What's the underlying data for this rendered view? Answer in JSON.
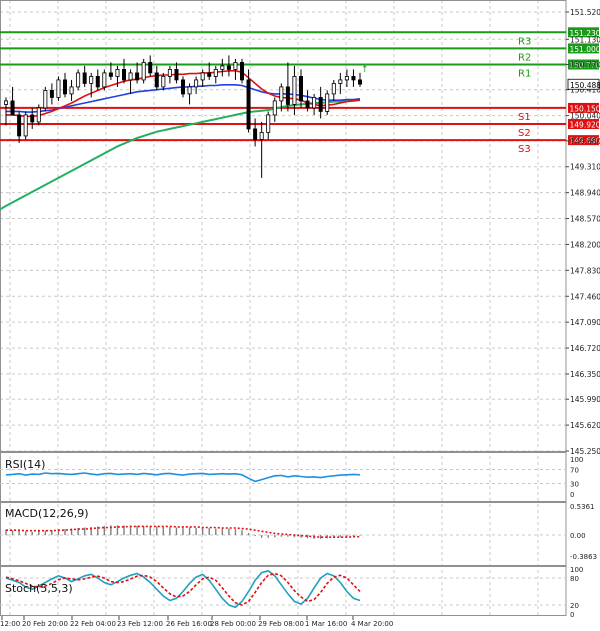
{
  "chart_data": {
    "type": "candlestick",
    "main": {
      "y_ticks": [
        "151.520",
        "151.130",
        "150.770",
        "150.410",
        "150.040",
        "149.680",
        "149.310",
        "148.940",
        "148.570",
        "148.200",
        "147.830",
        "147.460",
        "147.090",
        "146.720",
        "146.350",
        "145.990",
        "145.620",
        "145.250"
      ],
      "ylim": [
        145.25,
        151.7
      ],
      "last_price": "150.488",
      "current_price_label": "↑",
      "levels": [
        {
          "name": "R3",
          "value": 151.23,
          "label": "151.230",
          "color": "#1a9a1a"
        },
        {
          "name": "R2",
          "value": 151.0,
          "label": "151.000",
          "color": "#1a9a1a"
        },
        {
          "name": "R1",
          "value": 150.77,
          "label": "150.770",
          "color": "#1a9a1a"
        },
        {
          "name": "S1",
          "value": 150.15,
          "label": "150.150",
          "color": "#e01010"
        },
        {
          "name": "S2",
          "value": 149.92,
          "label": "149.920",
          "color": "#e01010"
        },
        {
          "name": "S3",
          "value": 149.69,
          "label": "149.690",
          "color": "#e01010"
        }
      ],
      "candles": [
        [
          150.2,
          150.3,
          149.9,
          150.25
        ],
        [
          150.25,
          150.45,
          150.1,
          150.05
        ],
        [
          150.05,
          150.1,
          149.65,
          149.75
        ],
        [
          149.75,
          150.1,
          149.7,
          150.05
        ],
        [
          150.05,
          150.15,
          149.85,
          149.95
        ],
        [
          149.95,
          150.2,
          149.9,
          150.15
        ],
        [
          150.15,
          150.45,
          150.1,
          150.4
        ],
        [
          150.4,
          150.5,
          150.2,
          150.3
        ],
        [
          150.3,
          150.6,
          150.25,
          150.55
        ],
        [
          150.55,
          150.65,
          150.3,
          150.35
        ],
        [
          150.35,
          150.55,
          150.25,
          150.45
        ],
        [
          150.45,
          150.7,
          150.4,
          150.65
        ],
        [
          150.65,
          150.75,
          150.45,
          150.5
        ],
        [
          150.5,
          150.65,
          150.3,
          150.6
        ],
        [
          150.6,
          150.7,
          150.4,
          150.45
        ],
        [
          150.45,
          150.7,
          150.4,
          150.65
        ],
        [
          150.65,
          150.8,
          150.55,
          150.6
        ],
        [
          150.6,
          150.75,
          150.45,
          150.7
        ],
        [
          150.7,
          150.85,
          150.5,
          150.55
        ],
        [
          150.55,
          150.7,
          150.35,
          150.65
        ],
        [
          150.65,
          150.8,
          150.5,
          150.55
        ],
        [
          150.55,
          150.85,
          150.5,
          150.8
        ],
        [
          150.8,
          150.9,
          150.6,
          150.65
        ],
        [
          150.65,
          150.75,
          150.4,
          150.45
        ],
        [
          150.45,
          150.65,
          150.4,
          150.6
        ],
        [
          150.6,
          150.75,
          150.5,
          150.7
        ],
        [
          150.7,
          150.8,
          150.5,
          150.55
        ],
        [
          150.55,
          150.6,
          150.3,
          150.35
        ],
        [
          150.35,
          150.5,
          150.2,
          150.45
        ],
        [
          150.45,
          150.6,
          150.35,
          150.55
        ],
        [
          150.55,
          150.7,
          150.45,
          150.65
        ],
        [
          150.65,
          150.8,
          150.55,
          150.6
        ],
        [
          150.6,
          150.75,
          150.5,
          150.7
        ],
        [
          150.7,
          150.85,
          150.6,
          150.75
        ],
        [
          150.75,
          150.9,
          150.6,
          150.7
        ],
        [
          150.7,
          150.85,
          150.55,
          150.8
        ],
        [
          150.8,
          150.85,
          150.5,
          150.55
        ],
        [
          150.55,
          150.7,
          149.8,
          149.85
        ],
        [
          149.85,
          150.0,
          149.6,
          149.7
        ],
        [
          149.7,
          149.95,
          149.15,
          149.8
        ],
        [
          149.8,
          150.1,
          149.7,
          150.05
        ],
        [
          150.05,
          150.3,
          149.95,
          150.25
        ],
        [
          150.25,
          150.5,
          150.1,
          150.45
        ],
        [
          150.45,
          150.8,
          150.1,
          150.2
        ],
        [
          150.2,
          150.75,
          150.05,
          150.6
        ],
        [
          150.6,
          150.7,
          150.15,
          150.25
        ],
        [
          150.25,
          150.4,
          150.1,
          150.15
        ],
        [
          150.15,
          150.35,
          150.05,
          150.3
        ],
        [
          150.3,
          150.45,
          150.0,
          150.1
        ],
        [
          150.1,
          150.4,
          150.05,
          150.35
        ],
        [
          150.35,
          150.55,
          150.25,
          150.5
        ],
        [
          150.5,
          150.65,
          150.35,
          150.55
        ],
        [
          150.55,
          150.7,
          150.45,
          150.6
        ],
        [
          150.6,
          150.7,
          150.45,
          150.55
        ],
        [
          150.55,
          150.65,
          150.45,
          150.49
        ]
      ],
      "ma_red": [
        150.05,
        150.05,
        150.04,
        150.03,
        150.03,
        150.04,
        150.07,
        150.1,
        150.14,
        150.18,
        150.22,
        150.27,
        150.32,
        150.36,
        150.4,
        150.44,
        150.47,
        150.5,
        150.53,
        150.55,
        150.56,
        150.58,
        150.6,
        150.61,
        150.62,
        150.62,
        150.63,
        150.63,
        150.64,
        150.64,
        150.65,
        150.65,
        150.66,
        150.67,
        150.68,
        150.68,
        150.66,
        150.58,
        150.5,
        150.42,
        150.36,
        150.32,
        150.3,
        150.29,
        150.28,
        150.26,
        150.22,
        150.2,
        150.18,
        150.19,
        150.2,
        150.22,
        150.24,
        150.25,
        150.26
      ],
      "ma_blue": [
        150.1,
        150.1,
        150.1,
        150.09,
        150.09,
        150.1,
        150.11,
        150.12,
        150.14,
        150.16,
        150.18,
        150.2,
        150.22,
        150.24,
        150.26,
        150.28,
        150.3,
        150.32,
        150.34,
        150.36,
        150.38,
        150.39,
        150.4,
        150.41,
        150.42,
        150.43,
        150.44,
        150.45,
        150.45,
        150.46,
        150.46,
        150.47,
        150.47,
        150.48,
        150.48,
        150.48,
        150.47,
        150.44,
        150.41,
        150.38,
        150.36,
        150.35,
        150.35,
        150.35,
        150.34,
        150.33,
        150.31,
        150.29,
        150.27,
        150.26,
        150.26,
        150.26,
        150.27,
        150.27,
        150.28
      ],
      "ma_green": [
        148.75,
        148.8,
        148.85,
        148.9,
        148.95,
        149.0,
        149.05,
        149.1,
        149.15,
        149.2,
        149.25,
        149.3,
        149.35,
        149.4,
        149.45,
        149.5,
        149.55,
        149.6,
        149.64,
        149.68,
        149.72,
        149.75,
        149.78,
        149.81,
        149.83,
        149.85,
        149.87,
        149.89,
        149.91,
        149.93,
        149.95,
        149.97,
        149.99,
        150.01,
        150.03,
        150.05,
        150.07,
        150.09,
        150.1,
        150.11,
        150.12,
        150.14,
        150.16,
        150.18,
        150.19,
        150.2,
        150.21,
        150.22,
        150.22,
        150.23,
        150.24,
        150.24,
        150.25,
        150.26,
        150.27
      ]
    },
    "rsi": {
      "label": "RSI(14)",
      "y_ticks": [
        "100",
        "70",
        "30",
        "0"
      ],
      "values": [
        55,
        56,
        58,
        54,
        57,
        56,
        60,
        58,
        59,
        57,
        56,
        58,
        60,
        57,
        55,
        58,
        59,
        56,
        57,
        58,
        56,
        59,
        57,
        55,
        58,
        59,
        56,
        54,
        57,
        58,
        59,
        56,
        57,
        58,
        57,
        58,
        55,
        45,
        36,
        41,
        47,
        52,
        53,
        49,
        52,
        50,
        48,
        49,
        47,
        50,
        52,
        54,
        55,
        56,
        55
      ]
    },
    "macd": {
      "label": "MACD(12,26,9)",
      "y_ticks": [
        "0.5361",
        "0.00",
        "-0.3863"
      ],
      "hist": [
        0.1,
        0.09,
        0.08,
        0.07,
        0.06,
        0.07,
        0.08,
        0.09,
        0.1,
        0.11,
        0.12,
        0.13,
        0.14,
        0.15,
        0.16,
        0.17,
        0.18,
        0.18,
        0.18,
        0.17,
        0.17,
        0.17,
        0.16,
        0.16,
        0.15,
        0.15,
        0.14,
        0.14,
        0.14,
        0.13,
        0.13,
        0.13,
        0.12,
        0.12,
        0.12,
        0.11,
        0.09,
        0.04,
        -0.02,
        -0.05,
        -0.05,
        -0.04,
        -0.03,
        -0.03,
        -0.04,
        -0.05,
        -0.06,
        -0.07,
        -0.07,
        -0.06,
        -0.05,
        -0.04,
        -0.03,
        -0.02,
        -0.01
      ],
      "signal": [
        0.09,
        0.09,
        0.09,
        0.08,
        0.08,
        0.08,
        0.08,
        0.08,
        0.09,
        0.09,
        0.1,
        0.11,
        0.11,
        0.12,
        0.13,
        0.14,
        0.14,
        0.15,
        0.15,
        0.16,
        0.16,
        0.16,
        0.16,
        0.16,
        0.16,
        0.16,
        0.15,
        0.15,
        0.15,
        0.15,
        0.14,
        0.14,
        0.14,
        0.13,
        0.13,
        0.13,
        0.12,
        0.11,
        0.09,
        0.07,
        0.05,
        0.03,
        0.02,
        0.01,
        0.0,
        -0.01,
        -0.02,
        -0.03,
        -0.04,
        -0.04,
        -0.04,
        -0.04,
        -0.04,
        -0.03,
        -0.03
      ]
    },
    "stoch": {
      "label": "Stoch(5,5,3)",
      "y_ticks": [
        "100",
        "80",
        "20",
        "0"
      ],
      "k": [
        80,
        75,
        70,
        60,
        55,
        62,
        70,
        78,
        85,
        80,
        72,
        78,
        85,
        88,
        80,
        70,
        65,
        72,
        80,
        86,
        90,
        82,
        70,
        55,
        40,
        30,
        35,
        50,
        68,
        82,
        88,
        75,
        55,
        35,
        20,
        15,
        28,
        50,
        75,
        92,
        96,
        85,
        65,
        45,
        28,
        22,
        35,
        58,
        80,
        90,
        85,
        70,
        50,
        35,
        30
      ],
      "d": [
        82,
        78,
        74,
        68,
        62,
        60,
        62,
        68,
        76,
        80,
        78,
        76,
        78,
        82,
        84,
        80,
        72,
        70,
        72,
        78,
        84,
        86,
        82,
        72,
        58,
        45,
        38,
        40,
        50,
        65,
        78,
        82,
        75,
        58,
        40,
        25,
        20,
        28,
        48,
        70,
        86,
        90,
        85,
        70,
        52,
        38,
        28,
        32,
        48,
        68,
        82,
        86,
        80,
        65,
        50
      ]
    },
    "x_ticks": [
      "12:00",
      "20 Feb 20:00",
      "22 Feb 04:00",
      "23 Feb 12:00",
      "26 Feb 16:00",
      "28 Feb 00:00",
      "29 Feb 08:00",
      "1 Mar 16:00",
      "4 Mar 20:00"
    ]
  },
  "colors": {
    "bull": "#1a9a1a",
    "bear": "#e01010",
    "ma_red": "#e01010",
    "ma_blue": "#2040e0",
    "ma_green": "#22b060",
    "rsi": "#1f8fe0",
    "macd_hist": "#808080",
    "macd_signal": "#e01010",
    "stoch_k": "#1fa0c0",
    "stoch_d": "#e01010",
    "grid": "#c8c8c8",
    "price_tag_bg": "#ffffff"
  }
}
